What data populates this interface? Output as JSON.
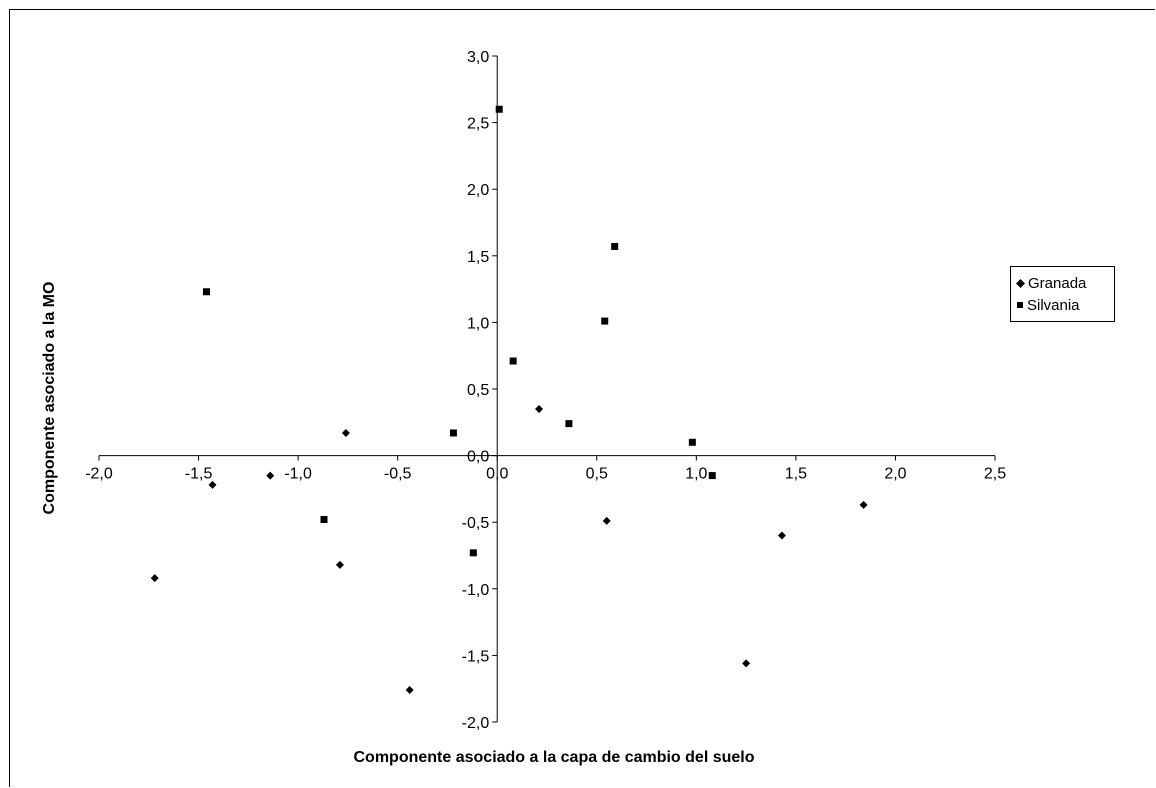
{
  "chart_data": {
    "type": "scatter",
    "xlabel": "Componente asociado a la capa de cambio del suelo",
    "ylabel": "Componente asociado a la MO",
    "xlim": [
      -2.0,
      2.5
    ],
    "ylim": [
      -2.0,
      3.0
    ],
    "x_ticks": [
      "-2,0",
      "-1,5",
      "-1,0",
      "-0,5",
      "0,0",
      "0,5",
      "1,0",
      "1,5",
      "2,0",
      "2,5"
    ],
    "y_ticks": [
      "3,0",
      "2,5",
      "2,0",
      "1,5",
      "1,0",
      "0,5",
      "0,0",
      "-0,5",
      "-1,0",
      "-1,5",
      "-2,0"
    ],
    "grid": false,
    "legend_position": "right",
    "series": [
      {
        "name": "Granada",
        "marker": "diamond",
        "color": "#000000",
        "points": [
          {
            "x": -1.72,
            "y": -0.92
          },
          {
            "x": -1.43,
            "y": -0.22
          },
          {
            "x": -1.14,
            "y": -0.15
          },
          {
            "x": -0.79,
            "y": -0.82
          },
          {
            "x": -0.76,
            "y": 0.17
          },
          {
            "x": -0.44,
            "y": -1.76
          },
          {
            "x": 0.21,
            "y": 0.35
          },
          {
            "x": 0.55,
            "y": -0.49
          },
          {
            "x": 1.25,
            "y": -1.56
          },
          {
            "x": 1.43,
            "y": -0.6
          },
          {
            "x": 1.84,
            "y": -0.37
          }
        ]
      },
      {
        "name": "Silvania",
        "marker": "square",
        "color": "#000000",
        "points": [
          {
            "x": -1.46,
            "y": 1.23
          },
          {
            "x": -0.87,
            "y": -0.48
          },
          {
            "x": -0.22,
            "y": 0.17
          },
          {
            "x": -0.12,
            "y": -0.73
          },
          {
            "x": 0.01,
            "y": 2.6
          },
          {
            "x": 0.08,
            "y": 0.71
          },
          {
            "x": 0.36,
            "y": 0.24
          },
          {
            "x": 0.54,
            "y": 1.01
          },
          {
            "x": 0.59,
            "y": 1.57
          },
          {
            "x": 0.98,
            "y": 0.1
          },
          {
            "x": 1.08,
            "y": -0.15
          }
        ]
      }
    ]
  }
}
